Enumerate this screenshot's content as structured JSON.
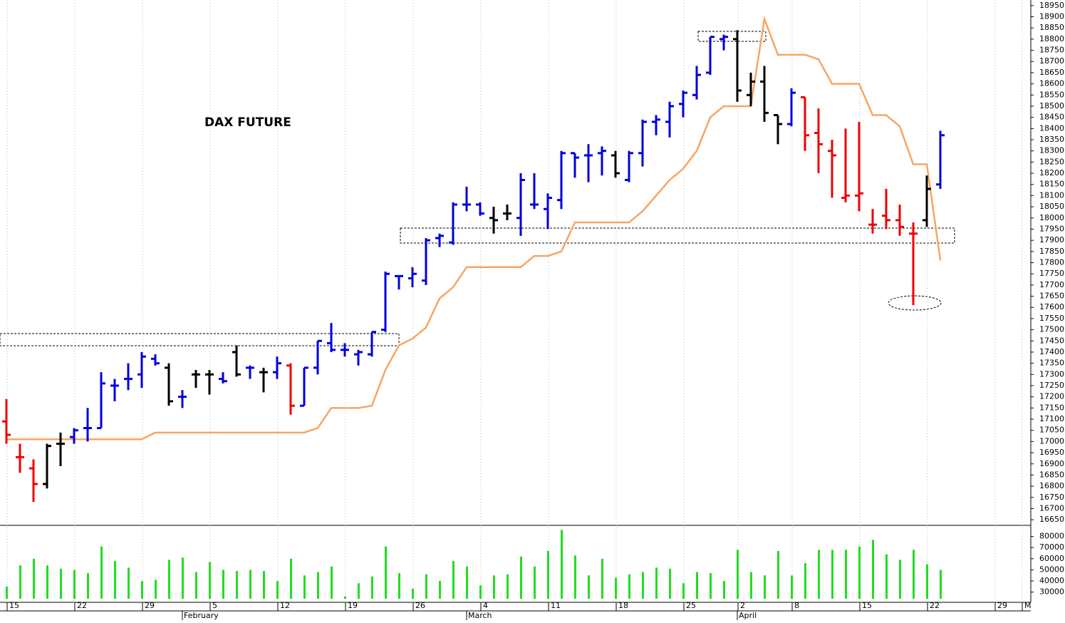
{
  "chart_data": {
    "type": "ohlc",
    "title": "DAX FUTURE",
    "categories": [
      "15",
      null,
      null,
      null,
      null,
      "22",
      null,
      null,
      null,
      null,
      "29",
      null,
      null,
      null,
      null,
      "5",
      null,
      null,
      null,
      null,
      "12",
      null,
      null,
      null,
      null,
      "19",
      null,
      null,
      null,
      null,
      "26",
      null,
      null,
      null,
      null,
      "4",
      null,
      null,
      null,
      null,
      "11",
      null,
      null,
      null,
      null,
      "18",
      null,
      null,
      null,
      null,
      "25",
      null,
      null,
      null,
      "2",
      null,
      null,
      null,
      "8",
      null,
      null,
      null,
      null,
      "15",
      null,
      null,
      null,
      null,
      "22",
      null,
      null,
      null,
      null,
      "29",
      null,
      "M"
    ],
    "months": [
      {
        "name": "February",
        "index": 13
      },
      {
        "name": "March",
        "index": 34
      },
      {
        "name": "April",
        "index": 54
      }
    ],
    "ylim": [
      16625,
      18975
    ],
    "yticks": [
      16650,
      16700,
      16750,
      16800,
      16850,
      16900,
      16950,
      17000,
      17050,
      17100,
      17150,
      17200,
      17250,
      17300,
      17350,
      17400,
      17450,
      17500,
      17550,
      17600,
      17650,
      17700,
      17750,
      17800,
      17850,
      17900,
      17950,
      18000,
      18050,
      18100,
      18150,
      18200,
      18250,
      18300,
      18350,
      18400,
      18450,
      18500,
      18550,
      18600,
      18650,
      18700,
      18750,
      18800,
      18850,
      18900,
      18950
    ],
    "open": [
      17090,
      16930,
      16880,
      16810,
      16990,
      17020,
      17060,
      17060,
      17250,
      17280,
      17300,
      17370,
      17330,
      17200,
      17300,
      17300,
      17280,
      17400,
      17330,
      17310,
      17310,
      17340,
      17160,
      17330,
      17440,
      17410,
      17390,
      17390,
      17500,
      17740,
      17730,
      17720,
      17910,
      17890,
      18060,
      18060,
      18000,
      18020,
      18000,
      18060,
      18040,
      18080,
      18290,
      18280,
      18290,
      18280,
      18170,
      18290,
      18430,
      18430,
      18510,
      18550,
      18650,
      18800,
      18800,
      18550,
      18610,
      18460,
      18420,
      18540,
      18380,
      18300,
      18090,
      18100,
      17970,
      18010,
      17990,
      17930,
      17990,
      18150,
      null,
      null,
      null,
      null,
      null,
      null
    ],
    "high": [
      17190,
      16990,
      16920,
      16990,
      17040,
      17060,
      17150,
      17310,
      17280,
      17350,
      17400,
      17390,
      17350,
      17230,
      17320,
      17320,
      17310,
      17430,
      17340,
      17330,
      17380,
      17350,
      17330,
      17450,
      17530,
      17440,
      17410,
      17490,
      17760,
      17740,
      17780,
      17910,
      17930,
      18070,
      18140,
      18070,
      18050,
      18060,
      18200,
      18200,
      18110,
      18300,
      18290,
      18330,
      18320,
      18300,
      18300,
      18440,
      18460,
      18520,
      18570,
      18680,
      18810,
      18820,
      18840,
      18650,
      18680,
      18460,
      18580,
      18540,
      18490,
      18350,
      18400,
      18430,
      18040,
      18130,
      18060,
      17980,
      18190,
      18390,
      null,
      null,
      null,
      null,
      null,
      null
    ],
    "low": [
      16990,
      16860,
      16730,
      16790,
      16890,
      16990,
      17000,
      17060,
      17180,
      17230,
      17240,
      17340,
      17160,
      17150,
      17240,
      17210,
      17260,
      17290,
      17280,
      17220,
      17280,
      17120,
      17160,
      17300,
      17400,
      17380,
      17340,
      17380,
      17490,
      17680,
      17690,
      17700,
      17870,
      17880,
      18030,
      18010,
      17930,
      17990,
      17920,
      18040,
      17950,
      18040,
      18180,
      18160,
      18190,
      18180,
      18160,
      18230,
      18370,
      18360,
      18450,
      18530,
      18640,
      18750,
      18520,
      18500,
      18430,
      18330,
      18410,
      18300,
      18200,
      18090,
      18070,
      18030,
      17930,
      17950,
      17920,
      17610,
      17960,
      18130,
      null,
      null,
      null,
      null,
      null,
      null
    ],
    "close": [
      17030,
      16930,
      16810,
      16980,
      16990,
      17050,
      17060,
      17260,
      17250,
      17280,
      17380,
      17350,
      17180,
      17200,
      17300,
      17300,
      17270,
      17300,
      17330,
      17310,
      17350,
      17160,
      17330,
      17450,
      17410,
      17410,
      17400,
      17490,
      17750,
      17740,
      17750,
      17900,
      17920,
      18060,
      18060,
      18020,
      17990,
      18020,
      18170,
      18060,
      18090,
      18290,
      18270,
      18280,
      18300,
      18200,
      18290,
      18430,
      18440,
      18500,
      18560,
      18640,
      18810,
      18810,
      18570,
      18610,
      18470,
      18420,
      18560,
      18370,
      18330,
      18280,
      18100,
      18110,
      17970,
      17990,
      17960,
      17930,
      18130,
      18370,
      null,
      null,
      null,
      null,
      null,
      null
    ],
    "bar_colors": [
      "#ee0000",
      "#ee0000",
      "#ee0000",
      "#000000",
      "#000000",
      "#0000dd",
      "#0000dd",
      "#0000dd",
      "#0000dd",
      "#0000dd",
      "#0000dd",
      "#0000dd",
      "#000000",
      "#0000dd",
      "#000000",
      "#000000",
      "#0000dd",
      "#000000",
      "#0000dd",
      "#000000",
      "#0000dd",
      "#ee0000",
      "#0000dd",
      "#0000dd",
      "#0000dd",
      "#0000dd",
      "#0000dd",
      "#0000dd",
      "#0000dd",
      "#0000dd",
      "#0000dd",
      "#0000dd",
      "#0000dd",
      "#0000dd",
      "#0000dd",
      "#0000dd",
      "#000000",
      "#000000",
      "#0000dd",
      "#0000dd",
      "#0000dd",
      "#0000dd",
      "#0000dd",
      "#0000dd",
      "#0000dd",
      "#000000",
      "#0000dd",
      "#0000dd",
      "#0000dd",
      "#0000dd",
      "#0000dd",
      "#0000dd",
      "#0000dd",
      "#0000dd",
      "#000000",
      "#000000",
      "#000000",
      "#000000",
      "#0000dd",
      "#ee0000",
      "#ee0000",
      "#ee0000",
      "#ee0000",
      "#ee0000",
      "#ee0000",
      "#ee0000",
      "#ee0000",
      "#ee0000",
      "#000000",
      "#0000dd",
      null,
      null,
      null,
      null,
      null,
      null
    ],
    "stop_line": {
      "color": "#f7a563",
      "values": [
        17010,
        17010,
        17010,
        17010,
        17010,
        17010,
        17010,
        17010,
        17010,
        17010,
        17010,
        17040,
        17040,
        17040,
        17040,
        17040,
        17040,
        17040,
        17040,
        17040,
        17040,
        17040,
        17040,
        17060,
        17150,
        17150,
        17150,
        17160,
        17320,
        17430,
        17460,
        17510,
        17640,
        17690,
        17780,
        17780,
        17780,
        17780,
        17780,
        17830,
        17830,
        17850,
        17980,
        17980,
        17980,
        17980,
        17980,
        18030,
        18100,
        18170,
        18220,
        18300,
        18450,
        18500,
        18500,
        18500,
        18890,
        18730,
        18730,
        18730,
        18710,
        18600,
        18600,
        18600,
        18460,
        18460,
        18410,
        18240,
        18240,
        17810,
        null,
        null,
        null,
        null,
        null,
        null
      ]
    },
    "volume": {
      "type": "bar",
      "color": "#22dd22",
      "ylim": [
        24000,
        90000
      ],
      "yticks": [
        30000,
        40000,
        50000,
        60000,
        70000,
        80000
      ],
      "values": [
        35000,
        54000,
        60000,
        54000,
        51000,
        50000,
        47000,
        71000,
        58000,
        52000,
        40000,
        41000,
        59000,
        61000,
        48000,
        57000,
        50000,
        49000,
        50000,
        49000,
        40000,
        60000,
        45000,
        48000,
        53000,
        26000,
        38000,
        44000,
        71000,
        47000,
        33000,
        46000,
        40000,
        58000,
        53000,
        36000,
        45000,
        46000,
        62000,
        53000,
        67000,
        86000,
        63000,
        45000,
        60000,
        43000,
        46000,
        48000,
        52000,
        51000,
        38000,
        48000,
        47000,
        40000,
        68000,
        48000,
        45000,
        67000,
        45000,
        56000,
        68000,
        68000,
        68000,
        71000,
        77000,
        64000,
        59000,
        68000,
        55000,
        50000,
        null,
        null,
        null,
        null,
        null,
        null
      ]
    },
    "grid": true
  }
}
